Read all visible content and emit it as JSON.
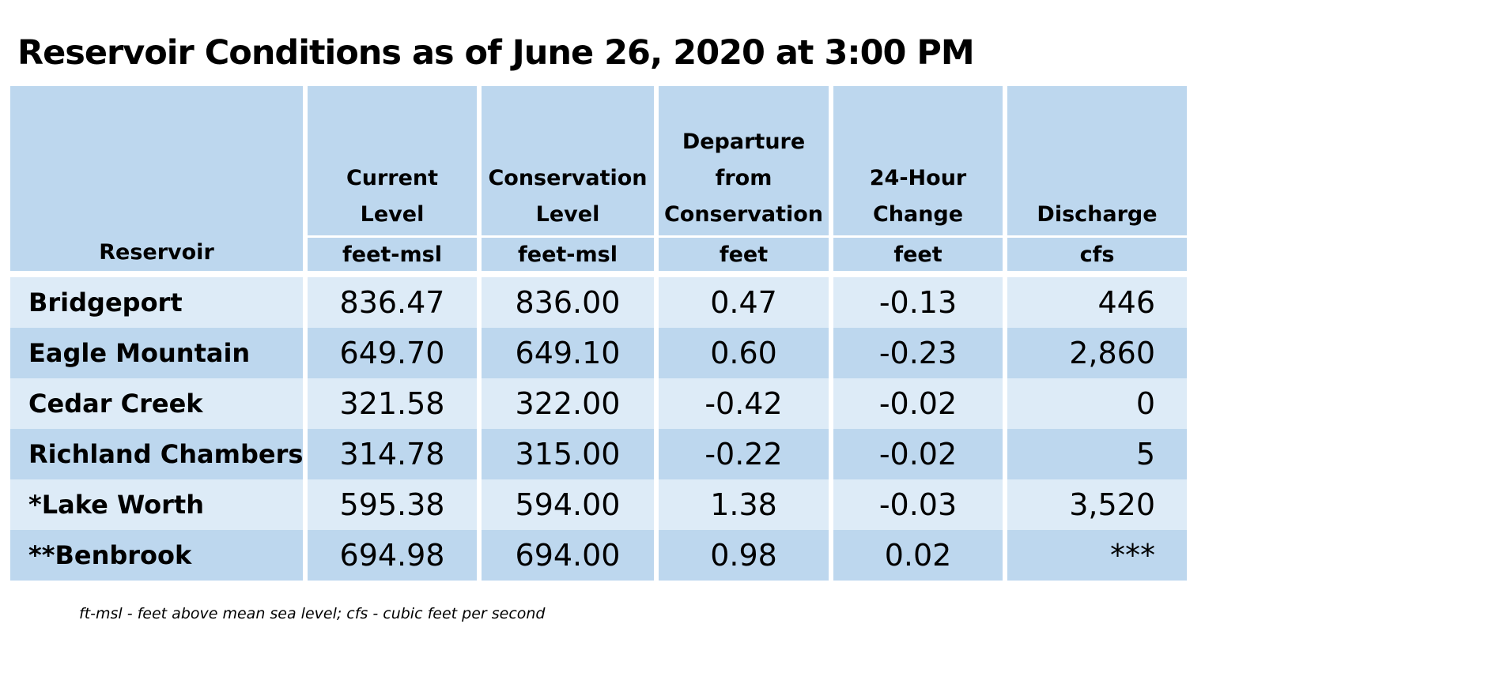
{
  "title": "Reservoir Conditions as of June 26, 2020 at 3:00 PM",
  "table": {
    "headers": [
      {
        "lines": [
          "Reservoir"
        ],
        "unit": ""
      },
      {
        "lines": [
          "Current",
          "Level"
        ],
        "unit": "feet-msl"
      },
      {
        "lines": [
          "Conservation",
          "Level"
        ],
        "unit": "feet-msl"
      },
      {
        "lines": [
          "Departure",
          "from",
          "Conservation"
        ],
        "unit": "feet"
      },
      {
        "lines": [
          "24-Hour",
          "Change"
        ],
        "unit": "feet"
      },
      {
        "lines": [
          "Discharge"
        ],
        "unit": "cfs"
      }
    ],
    "rows": [
      {
        "name": "Bridgeport",
        "current": "836.47",
        "conservation": "836.00",
        "departure": "0.47",
        "change": "-0.13",
        "discharge": "446"
      },
      {
        "name": "Eagle Mountain",
        "current": "649.70",
        "conservation": "649.10",
        "departure": "0.60",
        "change": "-0.23",
        "discharge": "2,860"
      },
      {
        "name": "Cedar Creek",
        "current": "321.58",
        "conservation": "322.00",
        "departure": "-0.42",
        "change": "-0.02",
        "discharge": "0"
      },
      {
        "name": "Richland Chambers",
        "current": "314.78",
        "conservation": "315.00",
        "departure": "-0.22",
        "change": "-0.02",
        "discharge": "5"
      },
      {
        "name": "*Lake Worth",
        "current": "595.38",
        "conservation": "594.00",
        "departure": "1.38",
        "change": "-0.03",
        "discharge": "3,520"
      },
      {
        "name": "**Benbrook",
        "current": "694.98",
        "conservation": "694.00",
        "departure": "0.98",
        "change": "0.02",
        "discharge": "***"
      }
    ]
  },
  "footnote": "ft-msl - feet above mean sea level; cfs - cubic feet per second",
  "colors": {
    "header_bg": "#bdd7ee",
    "row_light": "#ddebf7",
    "row_dark": "#bdd7ee"
  }
}
